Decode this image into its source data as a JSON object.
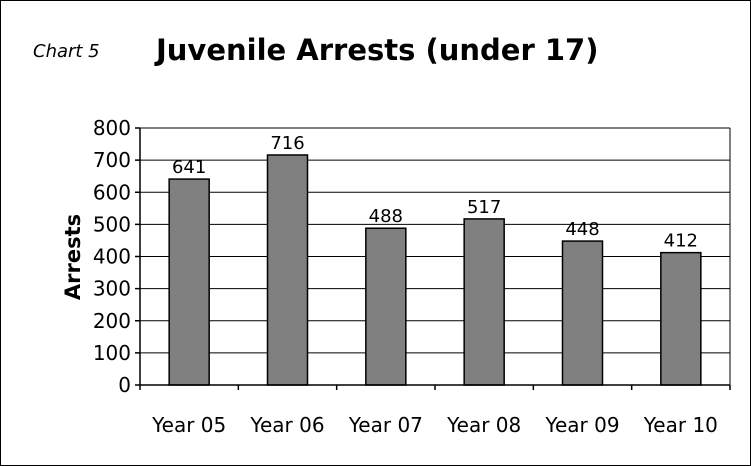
{
  "chart_data": {
    "type": "bar",
    "chart_number_label": "Chart 5",
    "title": "Juvenile Arrests (under 17)",
    "xlabel": "",
    "ylabel": "Arrests",
    "categories": [
      "Year 05",
      "Year 06",
      "Year 07",
      "Year 08",
      "Year 09",
      "Year 10"
    ],
    "values": [
      641,
      716,
      488,
      517,
      448,
      412
    ],
    "data_labels": [
      "641",
      "716",
      "488",
      "517",
      "448",
      "412"
    ],
    "ylim": [
      0,
      800
    ],
    "yticks": [
      0,
      100,
      200,
      300,
      400,
      500,
      600,
      700,
      800
    ],
    "ytick_labels": [
      "0",
      "100",
      "200",
      "300",
      "400",
      "500",
      "600",
      "700",
      "800"
    ],
    "grid": true,
    "legend": "none",
    "colors": {
      "bar": "#808080",
      "bar_stroke": "#000000",
      "grid": "#000000",
      "axis": "#000000"
    }
  }
}
